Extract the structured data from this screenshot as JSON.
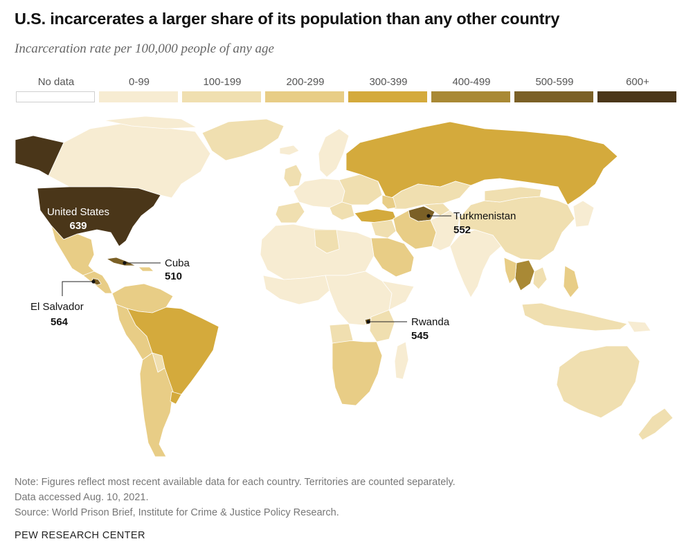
{
  "title": "U.S. incarcerates a larger share of its population than any other country",
  "subtitle": "Incarceration rate per 100,000 people of any age",
  "legend": {
    "bins": [
      {
        "label": "No data",
        "color": "#ffffff",
        "outline": true
      },
      {
        "label": "0-99",
        "color": "#f7ecd2"
      },
      {
        "label": "100-199",
        "color": "#f0dfb0"
      },
      {
        "label": "200-299",
        "color": "#e8cd86"
      },
      {
        "label": "300-399",
        "color": "#d4aa3c"
      },
      {
        "label": "400-499",
        "color": "#a98935"
      },
      {
        "label": "500-599",
        "color": "#7b6026"
      },
      {
        "label": "600+",
        "color": "#4a3619"
      }
    ]
  },
  "callouts": [
    {
      "name": "United States",
      "value": "639"
    },
    {
      "name": "Cuba",
      "value": "510"
    },
    {
      "name": "El Salvador",
      "value": "564"
    },
    {
      "name": "Turkmenistan",
      "value": "552"
    },
    {
      "name": "Rwanda",
      "value": "545"
    }
  ],
  "notes": {
    "note": "Note: Figures reflect most recent available data for each country. Territories are counted separately.",
    "accessed": "Data accessed Aug. 10, 2021.",
    "source": "Source: World Prison Brief, Institute for Crime & Justice Policy Research."
  },
  "brand": "PEW RESEARCH CENTER"
}
